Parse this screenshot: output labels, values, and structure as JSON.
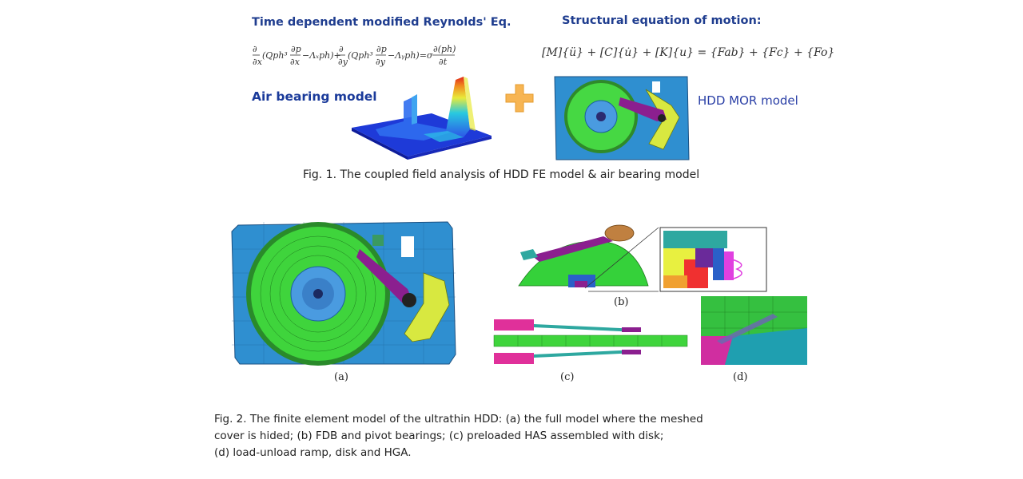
{
  "top": {
    "left_title": "Time dependent modified Reynolds' Eq.",
    "right_title": "Structural equation of motion:",
    "reynolds_equation": "∂/∂x (Qph³ ∂p/∂x − Λₓph) + ∂/∂y (Qph³ ∂p/∂y − Λᵧph) = σ ∂(ph)/∂t",
    "motion_equation": "[M]{ü} + [C]{u̇} + [K]{u} = {Fab} + {Fc} + {Fo}",
    "air_bearing_label": "Air bearing model",
    "hdd_mor_label": "HDD MOR model",
    "fig1_caption": "Fig. 1. The coupled field analysis of HDD FE model & air bearing model"
  },
  "fig2": {
    "sub_a": "(a)",
    "sub_b": "(b)",
    "sub_c": "(c)",
    "sub_d": "(d)",
    "caption_lines": [
      "Fig. 2. The finite element model of the ultrathin HDD: (a) the full model where the meshed",
      "cover is hided; (b) FDB and pivot bearings; (c) preloaded HAS assembled with disk;",
      "(d) load-unload ramp, disk and HGA."
    ]
  },
  "colors": {
    "title_blue": "#1f3d8f",
    "mesh_base": "#2f8fd0",
    "disk_green": "#35d13a",
    "arm_purple": "#8b1f8f",
    "plus_orange": "#f7b553"
  }
}
